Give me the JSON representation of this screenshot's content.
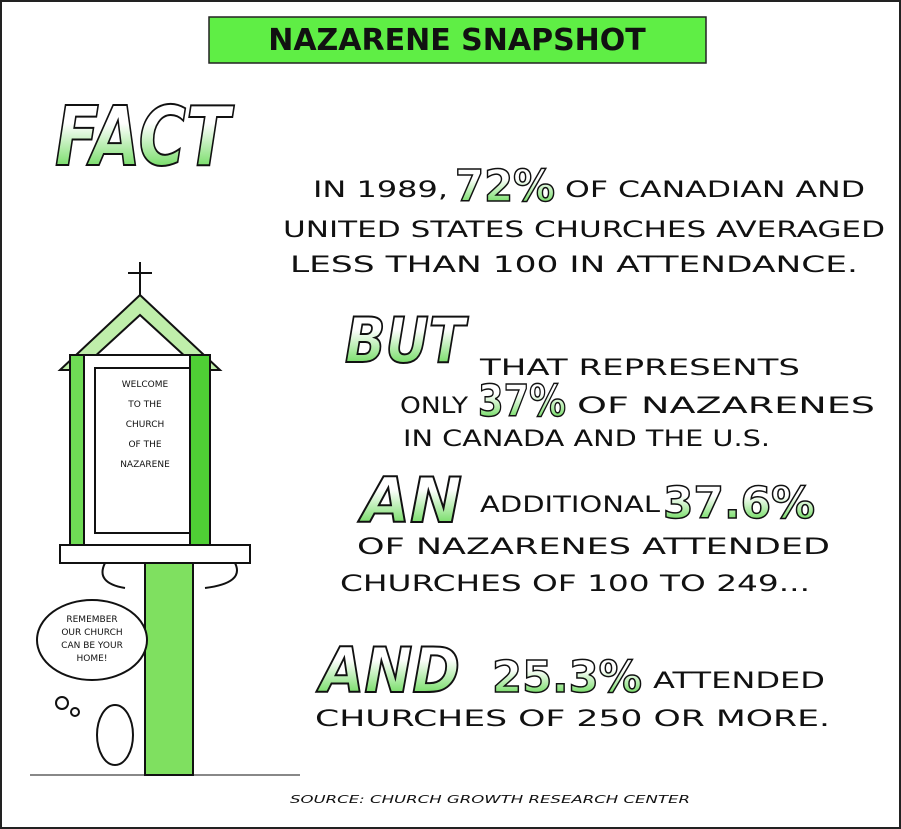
{
  "header": {
    "title": "NAZARENE SNAPSHOT"
  },
  "fact": {
    "keyword": "FACT",
    "lines": [
      [
        "IN 1989,",
        "72%",
        "OF CANADIAN AND"
      ],
      [
        "UNITED STATES CHURCHES AVERAGED"
      ],
      [
        "LESS THAN 100 IN ATTENDANCE."
      ]
    ]
  },
  "but": {
    "keyword": "BUT",
    "lines": [
      [
        "THAT REPRESENTS"
      ],
      [
        "ONLY",
        "37%",
        "OF NAZARENES"
      ],
      [
        "IN CANADA AND THE U.S."
      ]
    ]
  },
  "an": {
    "keyword": "AN",
    "lines": [
      [
        "ADDITIONAL",
        "37.6%"
      ],
      [
        "OF NAZARENES ATTENDED"
      ],
      [
        "CHURCHES OF 100 TO 249..."
      ]
    ]
  },
  "and": {
    "keyword": "AND",
    "lines": [
      [
        "25.3%",
        "ATTENDED"
      ],
      [
        "CHURCHES OF 250 OR MORE."
      ]
    ]
  },
  "sign": {
    "lines": [
      "WELCOME",
      "TO THE",
      "CHURCH",
      "OF THE",
      "NAZARENE"
    ]
  },
  "bubble": {
    "lines": [
      "REMEMBER",
      "OUR CHURCH",
      "CAN BE YOUR",
      "HOME!"
    ]
  },
  "source": "SOURCE: CHURCH GROWTH RESEARCH CENTER"
}
